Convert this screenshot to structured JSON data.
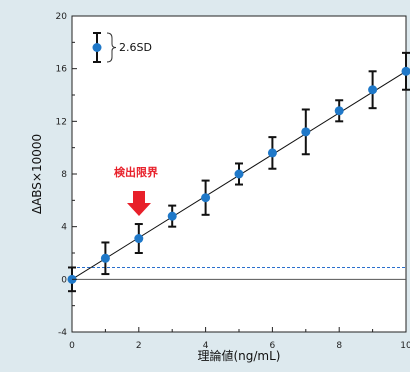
{
  "chart_data": {
    "type": "scatter",
    "title": "",
    "xlabel": "理論値(ng/mL)",
    "ylabel": "ΔABS×10000",
    "xlim": [
      0,
      10
    ],
    "ylim": [
      -4,
      20
    ],
    "x_ticks": [
      0,
      2,
      4,
      6,
      8,
      10
    ],
    "y_ticks": [
      -4,
      0,
      4,
      8,
      12,
      16,
      20
    ],
    "x_tick_labels": [
      "0",
      "2",
      "4",
      "6",
      "8",
      "10"
    ],
    "y_tick_labels": [
      "-4",
      "0",
      "4",
      "8",
      "12",
      "16",
      "20"
    ],
    "grid": false,
    "series": [
      {
        "x": [
          0,
          1,
          2,
          3,
          4,
          5,
          6,
          7,
          8,
          9,
          10
        ],
        "y": [
          0,
          1.6,
          3.1,
          4.8,
          6.2,
          8.0,
          9.6,
          11.2,
          12.8,
          14.4,
          15.8
        ],
        "error_half": [
          0.9,
          1.2,
          1.1,
          0.8,
          1.3,
          0.8,
          1.2,
          1.7,
          0.8,
          1.4,
          1.4
        ]
      }
    ],
    "fit_line": {
      "x": [
        0,
        10
      ],
      "y": [
        0,
        15.8
      ]
    },
    "reference_lines": [
      {
        "y": 0,
        "style": "solid",
        "color": "#555555"
      },
      {
        "y": 0.9,
        "style": "dashed",
        "color": "#2a6fcc"
      }
    ],
    "legend": {
      "label": "2.6SD",
      "placement": "top-left"
    },
    "annotations": [
      {
        "text": "検出限界",
        "x": 2,
        "y": 3.1,
        "color": "#e8202a"
      }
    ],
    "colors": {
      "marker": "#1f78c8",
      "error_bar": "#111111",
      "fit_line": "#111111"
    }
  }
}
